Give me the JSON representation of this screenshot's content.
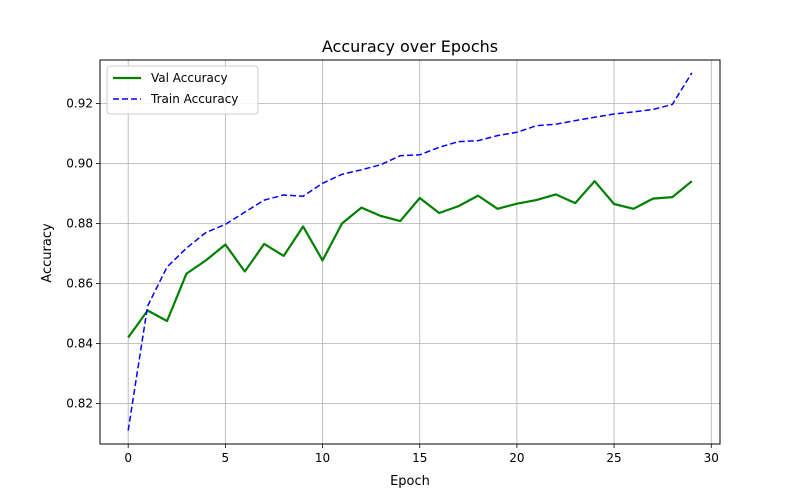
{
  "chart_data": {
    "type": "line",
    "title": "Accuracy over Epochs",
    "xlabel": "Epoch",
    "ylabel": "Accuracy",
    "xlim": [
      -1.45,
      30.45
    ],
    "ylim": [
      0.8065,
      0.9345
    ],
    "xticks": [
      0,
      5,
      10,
      15,
      20,
      25,
      30
    ],
    "xtick_labels": [
      "0",
      "5",
      "10",
      "15",
      "20",
      "25",
      "30"
    ],
    "yticks": [
      0.82,
      0.84,
      0.86,
      0.88,
      0.9,
      0.92
    ],
    "ytick_labels": [
      "0.82",
      "0.84",
      "0.86",
      "0.88",
      "0.90",
      "0.92"
    ],
    "grid": true,
    "legend_position": "top-left",
    "x": [
      0,
      1,
      2,
      3,
      4,
      5,
      6,
      7,
      8,
      9,
      10,
      11,
      12,
      13,
      14,
      15,
      16,
      17,
      18,
      19,
      20,
      21,
      22,
      23,
      24,
      25,
      26,
      27,
      28,
      29
    ],
    "series": [
      {
        "name": "Val Accuracy",
        "color": "#008000",
        "style": "solid",
        "values": [
          0.842,
          0.851,
          0.8475,
          0.8633,
          0.8677,
          0.873,
          0.864,
          0.8732,
          0.8692,
          0.879,
          0.8677,
          0.88,
          0.8853,
          0.8825,
          0.8808,
          0.8885,
          0.8835,
          0.8858,
          0.8893,
          0.8849,
          0.8866,
          0.8878,
          0.8897,
          0.8868,
          0.8941,
          0.8865,
          0.8849,
          0.8883,
          0.8888,
          0.8941
        ]
      },
      {
        "name": "Train Accuracy",
        "color": "#0000ff",
        "style": "dashed",
        "values": [
          0.811,
          0.8525,
          0.8655,
          0.8718,
          0.877,
          0.8797,
          0.8838,
          0.8878,
          0.8895,
          0.8891,
          0.8934,
          0.8964,
          0.8979,
          0.8996,
          0.9026,
          0.9029,
          0.9054,
          0.9073,
          0.9076,
          0.9093,
          0.9104,
          0.9126,
          0.9131,
          0.9143,
          0.9154,
          0.9165,
          0.9172,
          0.918,
          0.9197,
          0.9302
        ]
      }
    ]
  }
}
